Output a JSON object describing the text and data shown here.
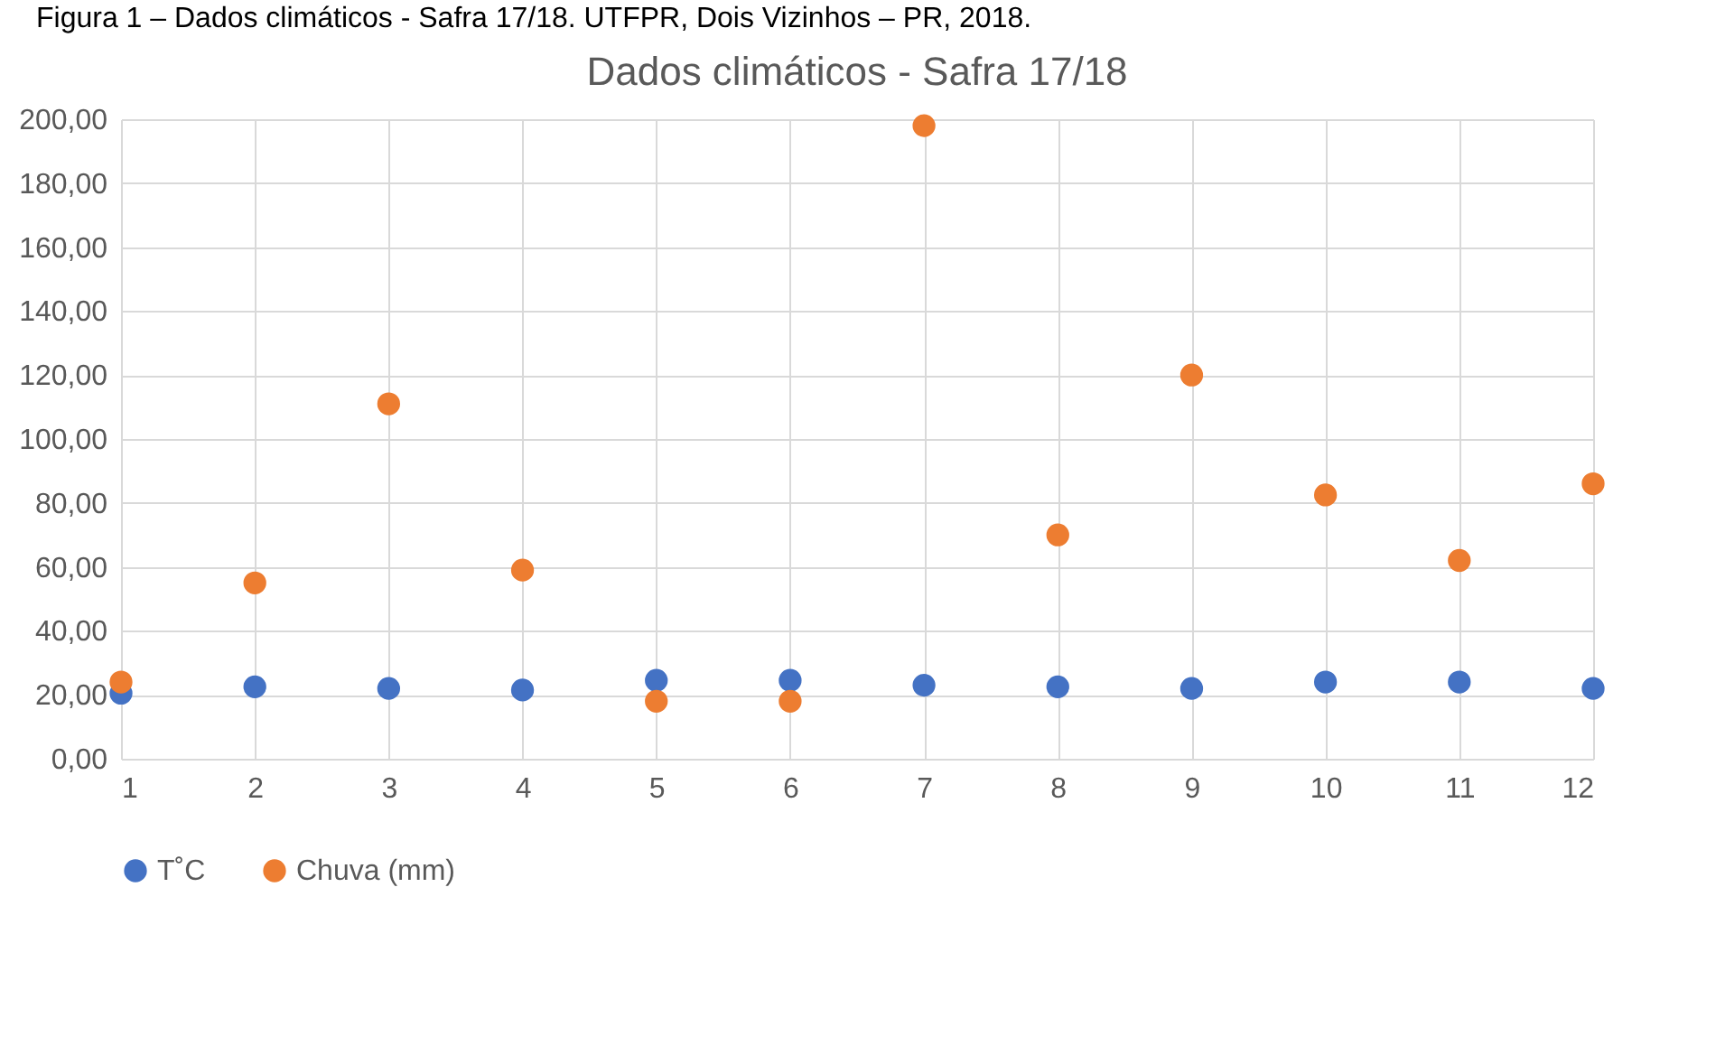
{
  "chart_data": {
    "type": "scatter",
    "title": "Dados climáticos - Safra 17/18",
    "annotations": [
      "Figura 1 – Dados climáticos - Safra 17/18. UTFPR, Dois Vizinhos – PR, 2018."
    ],
    "x": [
      1,
      2,
      3,
      4,
      5,
      6,
      7,
      8,
      9,
      10,
      11,
      12
    ],
    "series": [
      {
        "name": "T˚C",
        "color": "#4472c4",
        "values": [
          20.5,
          22.5,
          22,
          21.5,
          24.5,
          24.5,
          23,
          22.5,
          22,
          24,
          24,
          22
        ]
      },
      {
        "name": "Chuva (mm)",
        "color": "#ed7d31",
        "values": [
          24,
          55,
          111,
          59,
          18,
          18,
          198,
          70,
          120,
          82.5,
          62,
          86
        ]
      }
    ],
    "xlim": [
      1,
      12
    ],
    "xticks": [
      1,
      2,
      3,
      4,
      5,
      6,
      7,
      8,
      9,
      10,
      11,
      12
    ],
    "ylim": [
      0,
      200
    ],
    "yticks": [
      {
        "value": 0,
        "label": "0,00"
      },
      {
        "value": 20,
        "label": "20,00"
      },
      {
        "value": 40,
        "label": "40,00"
      },
      {
        "value": 60,
        "label": "60,00"
      },
      {
        "value": 80,
        "label": "80,00"
      },
      {
        "value": 100,
        "label": "100,00"
      },
      {
        "value": 120,
        "label": "120,00"
      },
      {
        "value": 140,
        "label": "140,00"
      },
      {
        "value": 160,
        "label": "160,00"
      },
      {
        "value": 180,
        "label": "180,00"
      },
      {
        "value": 200,
        "label": "200,00"
      }
    ],
    "grid": true,
    "legend": "bottom",
    "marker": "circle"
  }
}
